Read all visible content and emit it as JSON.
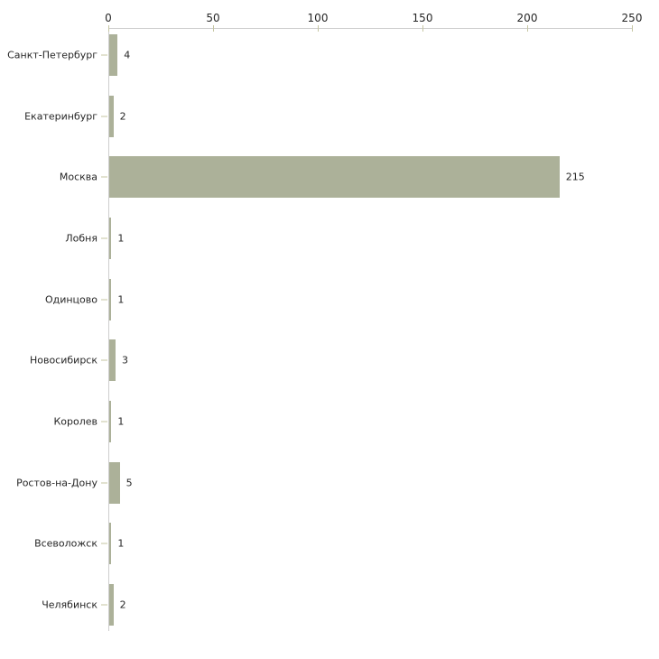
{
  "chart_data": {
    "type": "bar",
    "orientation": "horizontal",
    "title": "",
    "xlabel": "",
    "ylabel": "",
    "categories": [
      "Санкт-Петербург",
      "Екатеринбург",
      "Москва",
      "Лобня",
      "Одинцово",
      "Новосибирск",
      "Королев",
      "Ростов-на-Дону",
      "Всеволожск",
      "Челябинск"
    ],
    "values": [
      4,
      2,
      215,
      1,
      1,
      3,
      1,
      5,
      1,
      2
    ],
    "x_axis": {
      "position": "top",
      "ticks": [
        0,
        50,
        100,
        150,
        200,
        250
      ],
      "range": [
        0,
        250
      ]
    },
    "grid": false,
    "legend": false,
    "bar_value_labels_shown": true,
    "style": {
      "background": "#ffffff",
      "bar_color": "#acb199",
      "tick_color": "#c6c6a2",
      "axis_line_color": "#cdcdcd",
      "text_color": "#262626"
    }
  }
}
